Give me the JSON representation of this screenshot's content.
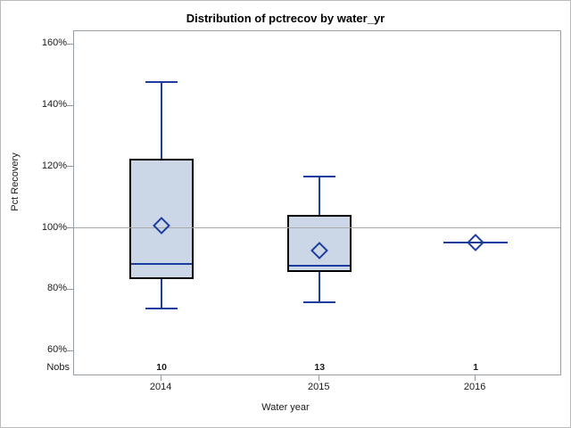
{
  "title": "Distribution of pctrecov by water_yr",
  "axes": {
    "y_label": "Pct Recovery",
    "x_label": "Water year",
    "nobs_label": "Nobs"
  },
  "chart_data": {
    "type": "box",
    "title": "Distribution of pctrecov by water_yr",
    "xlabel": "Water year",
    "ylabel": "Pct Recovery",
    "categories": [
      "2014",
      "2015",
      "2016"
    ],
    "nobs": [
      "10",
      "13",
      "1"
    ],
    "y_ticks": [
      160,
      140,
      120,
      100,
      80,
      60
    ],
    "y_tick_format": "percent",
    "ylim": [
      52,
      164
    ],
    "reference_line": 100,
    "grid": false,
    "legend": "none",
    "series": [
      {
        "category": "2014",
        "n": 10,
        "min": 73.5,
        "q1": 83,
        "median": 88,
        "q3": 122.5,
        "max": 147.5,
        "mean": 100.5
      },
      {
        "category": "2015",
        "n": 13,
        "min": 75.5,
        "q1": 85.5,
        "median": 87.5,
        "q3": 104,
        "max": 116.5,
        "mean": 92.5
      },
      {
        "category": "2016",
        "n": 1,
        "min": 95,
        "q1": 95,
        "median": 95,
        "q3": 95,
        "max": 95,
        "mean": 95
      }
    ],
    "colors": {
      "box_fill": "#cbd6e6",
      "box_border": "#000000",
      "line": "#1d3d9e",
      "reference": "#a9a9a9"
    }
  }
}
